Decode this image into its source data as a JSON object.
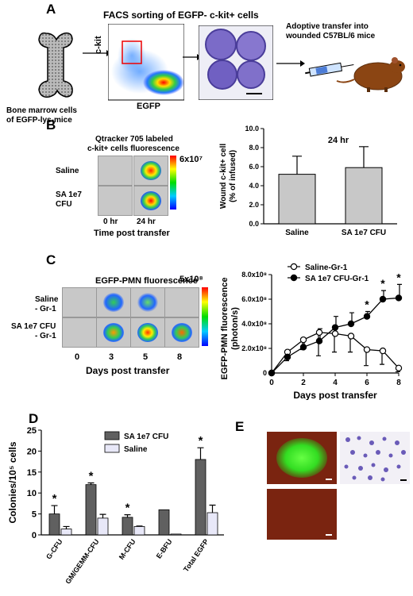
{
  "panelA": {
    "label": "A",
    "facs_title": "FACS sorting of EGFP- c-kit+ cells",
    "bone_label_1": "Bone marrow cells",
    "bone_label_2": "of EGFP-lys-mice",
    "axis_y": "c-kit",
    "axis_x": "EGFP",
    "transfer_1": "Adoptive transfer into",
    "transfer_2": "wounded C57BL/6 mice"
  },
  "panelB": {
    "label": "B",
    "img_title_1": "Qtracker 705 labeled",
    "img_title_2": "c-kit+ cells fluorescence",
    "row1": "Saline",
    "row2_1": "SA 1e7",
    "row2_2": "CFU",
    "scale_max": "6x10⁷",
    "col1": "0 hr",
    "col2": "24 hr",
    "xlabel": "Time post transfer"
  },
  "panelC": {
    "label": "C",
    "img_title": "EGFP-PMN fluorescence",
    "row1_1": "Saline",
    "row1_2": "- Gr-1",
    "row2_1": "SA 1e7 CFU",
    "row2_2": "- Gr-1",
    "scale_max": "5x10⁸",
    "cols": [
      "0",
      "3",
      "5",
      "8"
    ],
    "xlabel": "Days post transfer"
  },
  "panelD": {
    "label": "D"
  },
  "panelE": {
    "label": "E"
  },
  "chart_data": [
    {
      "id": "B",
      "type": "bar",
      "title": "24 hr",
      "ylabel_1": "Wound c-kit+ cell",
      "ylabel_2": "(% of infused)",
      "categories": [
        "Saline",
        "SA 1e7 CFU"
      ],
      "values": [
        5.2,
        5.9
      ],
      "errors": [
        1.9,
        2.2
      ],
      "ylim": [
        0,
        10
      ],
      "yticks": [
        "0.0",
        "2.0",
        "4.0",
        "6.0",
        "8.0",
        "10.0"
      ],
      "bar_color": "#c8c8c8"
    },
    {
      "id": "C",
      "type": "line",
      "xlabel": "Days post transfer",
      "ylabel_1": "EGFP-PMN fluorescence",
      "ylabel_2": "(photon/s)",
      "x": [
        0,
        1,
        2,
        3,
        4,
        5,
        6,
        7,
        8
      ],
      "xticks": [
        "0",
        "2",
        "4",
        "6",
        "8"
      ],
      "yticks": [
        "0",
        "2.0x10⁸",
        "4.0x10⁸",
        "6.0x10⁸",
        "8.0x10⁸"
      ],
      "ylim": [
        0,
        8
      ],
      "series": [
        {
          "name": "Saline-Gr-1",
          "marker": "open",
          "values": [
            0,
            1.7,
            2.7,
            3.3,
            3.2,
            3.0,
            1.9,
            1.8,
            0.4
          ],
          "errors": [
            0,
            0.7,
            0.8,
            1.9,
            1.5,
            1.3,
            1.3,
            1.1,
            0.3
          ]
        },
        {
          "name": "SA 1e7 CFU-Gr-1",
          "marker": "filled",
          "values": [
            0,
            1.3,
            2.1,
            2.6,
            3.7,
            4.0,
            4.6,
            6.0,
            6.1
          ],
          "errors": [
            0,
            0.4,
            0.6,
            1.0,
            0.9,
            0.9,
            0.4,
            0.7,
            1.1
          ]
        }
      ],
      "star_text": "*",
      "stars_at": [
        6,
        7,
        8
      ]
    },
    {
      "id": "D",
      "type": "bar",
      "ylabel": "Colonies/10⁵ cells",
      "categories": [
        "G-CFU",
        "GM/GEMM-CFU",
        "M-CFU",
        "E-BFU",
        "Total EGFP"
      ],
      "ylim": [
        0,
        25
      ],
      "yticks": [
        "0",
        "5",
        "10",
        "15",
        "20",
        "25"
      ],
      "series": [
        {
          "name": "SA 1e7 CFU",
          "color": "#606060",
          "values": [
            5.0,
            12.0,
            4.2,
            6.0,
            18.0
          ],
          "errors": [
            2.0,
            0.4,
            0.6,
            0,
            2.8
          ]
        },
        {
          "name": "Saline",
          "color": "#e8e8f8",
          "values": [
            1.4,
            4.0,
            2.0,
            0.2,
            5.3
          ],
          "errors": [
            0.6,
            0.9,
            0.1,
            0,
            1.8
          ]
        }
      ],
      "star_text": "*",
      "stars_on": [
        0,
        1,
        2,
        4
      ]
    }
  ]
}
